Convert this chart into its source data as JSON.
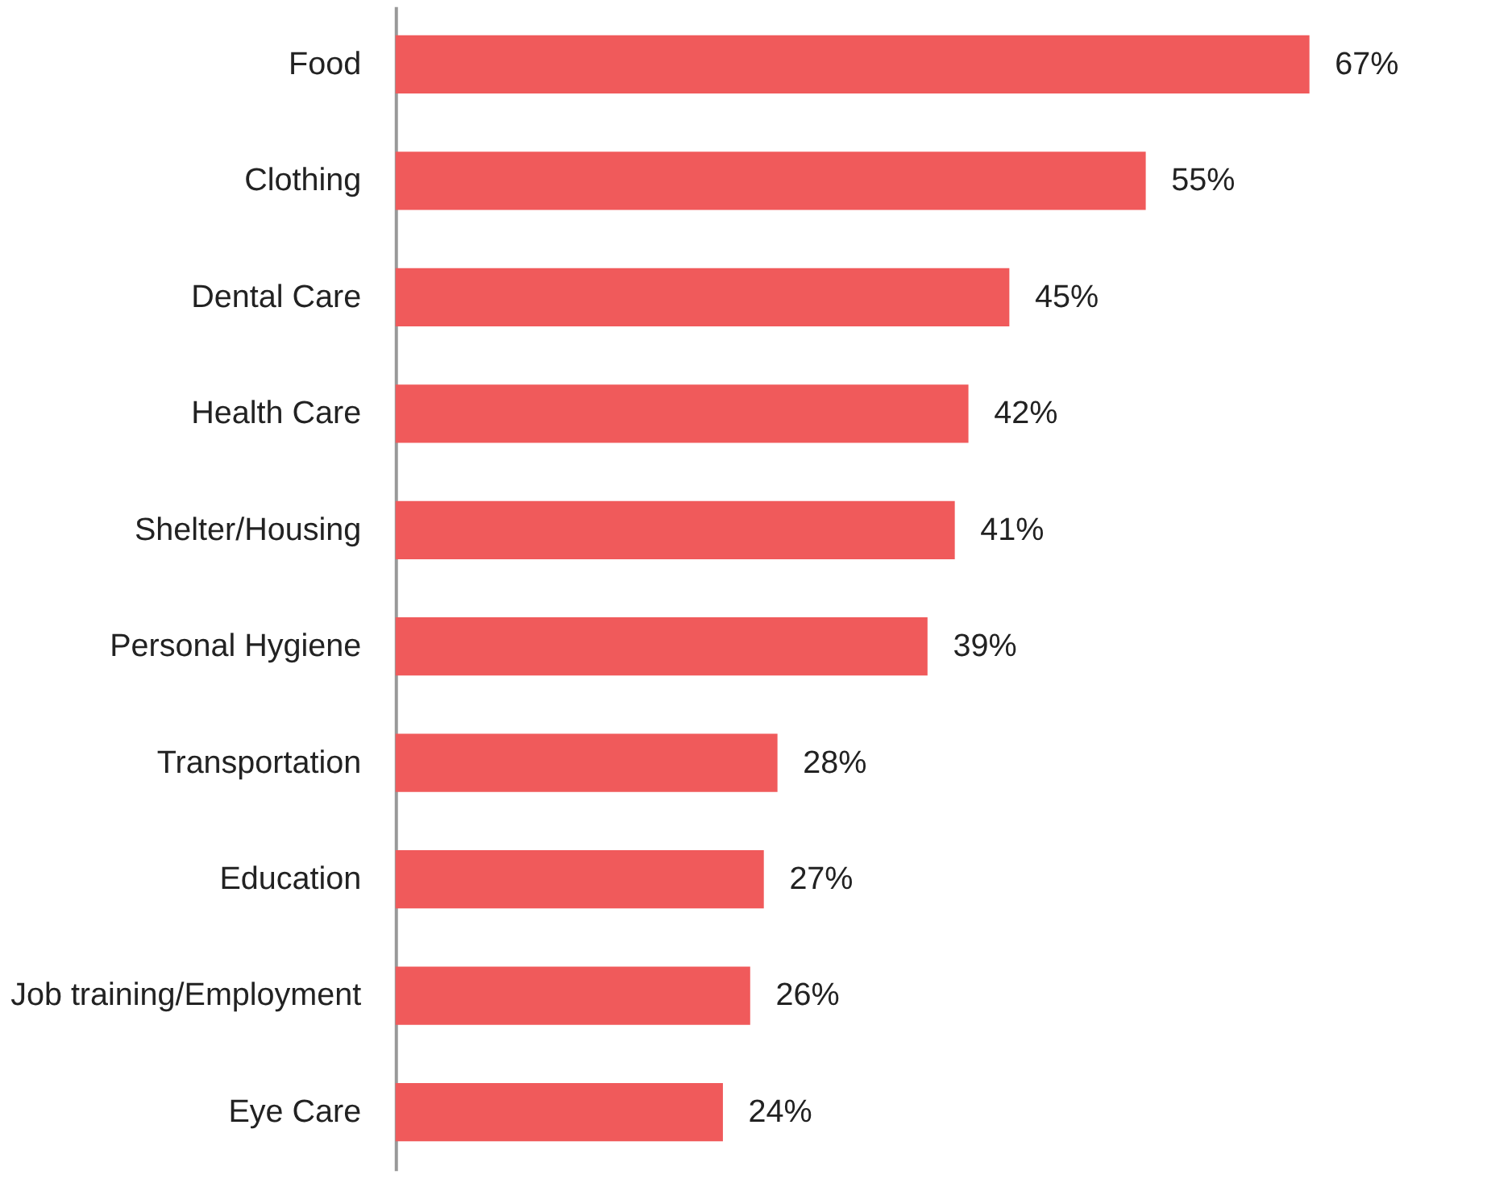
{
  "chart_data": {
    "type": "bar",
    "orientation": "horizontal",
    "categories": [
      "Food",
      "Clothing",
      "Dental Care",
      "Health Care",
      "Shelter/Housing",
      "Personal Hygiene",
      "Transportation",
      "Education",
      "Job training/Employment",
      "Eye Care"
    ],
    "values": [
      67,
      55,
      45,
      42,
      41,
      39,
      28,
      27,
      26,
      24
    ],
    "value_labels": [
      "67%",
      "55%",
      "45%",
      "42%",
      "41%",
      "39%",
      "28%",
      "27%",
      "26%",
      "24%"
    ],
    "color": "#f05a5b",
    "tick_labels": "y"
  }
}
